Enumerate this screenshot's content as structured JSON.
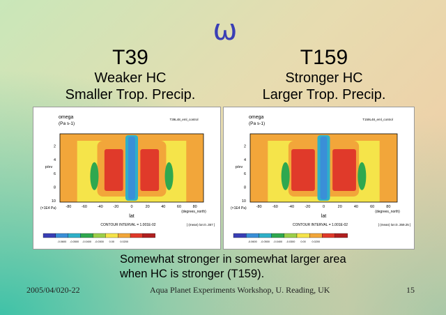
{
  "symbol": "ω",
  "left": {
    "resolution": "T39",
    "line1": "Weaker HC",
    "line2": "Smaller Trop. Precip.",
    "plot": {
      "var": "omega",
      "units": "(Pa s-1)",
      "run": "T39L48_eml_control",
      "ylabel": "p/ev",
      "yunits": "(×1E4 Pa)",
      "xlabel": "lat",
      "xunits": "(degrees_north)",
      "xticks": [
        "-80",
        "-60",
        "-40",
        "-20",
        "0",
        "20",
        "40",
        "60",
        "80"
      ],
      "yticks": [
        "2",
        "4",
        "6",
        "8",
        "10"
      ],
      "contour": "CONTOUR INTERVAL = 1.001E-02",
      "mean": "[ (mean) lon:0..357 ]",
      "colorbar": [
        "-0.0600",
        "-0.0500",
        "-0.0400",
        "-0.0300",
        "0.00",
        "0.0200"
      ]
    }
  },
  "right": {
    "resolution": "T159",
    "line1": "Stronger HC",
    "line2": "Larger Trop. Precip.",
    "plot": {
      "var": "omega",
      "units": "(Pa s-1)",
      "run": "T159L48_eml_control",
      "ylabel": "p/ev",
      "yunits": "(×1E4 Pa)",
      "xlabel": "lat",
      "xunits": "(degrees_north)",
      "xticks": [
        "-80",
        "-60",
        "-40",
        "-20",
        "0",
        "20",
        "40",
        "60",
        "80"
      ],
      "yticks": [
        "2",
        "4",
        "6",
        "8",
        "10"
      ],
      "contour": "CONTOUR INTERVAL = 1.001E-02",
      "mean": "[ (mean) lon:0..359.25 ]",
      "colorbar": [
        "-0.0600",
        "-0.0500",
        "-0.0400",
        "-0.0300",
        "0.00",
        "0.0200"
      ]
    }
  },
  "caption": {
    "line1": "Somewhat stronger in somewhat larger area",
    "line2": "when HC is stronger (T159)."
  },
  "footer": {
    "date": "2005/04/020-22",
    "center": "Aqua Planet Experiments Workshop, U. Reading, UK",
    "page": "15"
  },
  "colors": {
    "omega_symbol": "#3a3fb5",
    "strong_descent": "#e03a2a",
    "weak_descent": "#f2a63a",
    "neutral": "#f5e44a",
    "weak_ascent": "#2fa84f",
    "strong_ascent": "#3a8fd8"
  }
}
